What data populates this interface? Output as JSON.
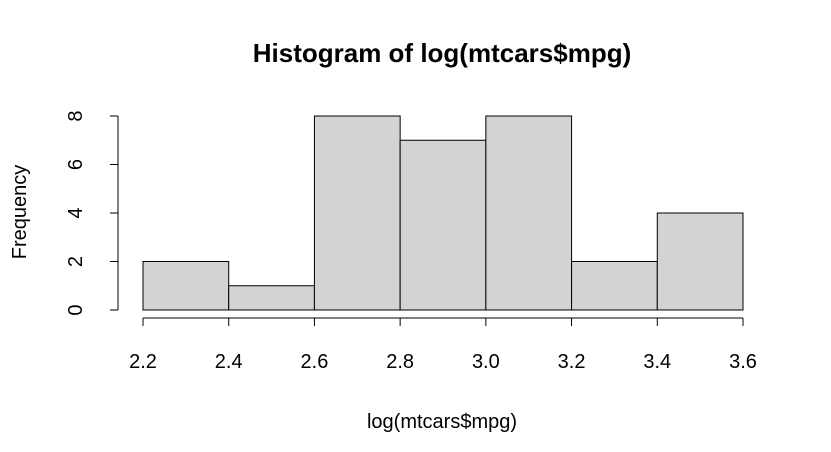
{
  "chart_data": {
    "type": "bar",
    "title": "Histogram of log(mtcars$mpg)",
    "xlabel": "log(mtcars$mpg)",
    "ylabel": "Frequency",
    "bins": [
      {
        "x0": 2.2,
        "x1": 2.4,
        "count": 2
      },
      {
        "x0": 2.4,
        "x1": 2.6,
        "count": 1
      },
      {
        "x0": 2.6,
        "x1": 2.8,
        "count": 8
      },
      {
        "x0": 2.8,
        "x1": 3.0,
        "count": 7
      },
      {
        "x0": 3.0,
        "x1": 3.2,
        "count": 8
      },
      {
        "x0": 3.2,
        "x1": 3.4,
        "count": 2
      },
      {
        "x0": 3.4,
        "x1": 3.6,
        "count": 4
      }
    ],
    "xlim": [
      2.2,
      3.6
    ],
    "ylim": [
      0,
      8
    ],
    "x_ticks": [
      "2.2",
      "2.4",
      "2.6",
      "2.8",
      "3.0",
      "3.2",
      "3.4",
      "3.6"
    ],
    "y_ticks": [
      "0",
      "2",
      "4",
      "6",
      "8"
    ],
    "grid": false,
    "legend": "none",
    "bar_fill": "#d3d3d3",
    "bar_stroke": "#000000"
  }
}
